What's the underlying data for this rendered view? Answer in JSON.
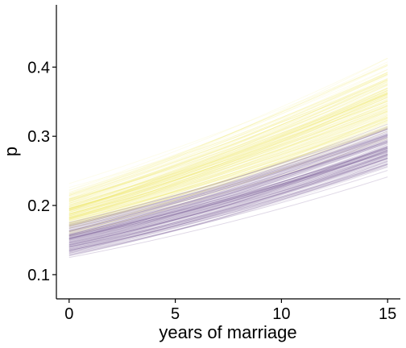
{
  "chart_data": {
    "type": "line",
    "xlabel": "years of marriage",
    "ylabel": "p",
    "xlim": [
      -0.6,
      15.6
    ],
    "ylim": [
      0.065,
      0.49
    ],
    "x_ticks": [
      0,
      5,
      10,
      15
    ],
    "y_ticks": [
      0.1,
      0.2,
      0.3,
      0.4
    ],
    "x_tick_labels": [
      "0",
      "5",
      "10",
      "15"
    ],
    "y_tick_labels": [
      "0.1",
      "0.2",
      "0.3",
      "0.4"
    ],
    "x": [
      0,
      15
    ],
    "grid": false,
    "legend": "none",
    "line_opacity": 0.12,
    "series": [
      {
        "color": "#efe351",
        "draws": 170,
        "p_at_0": {
          "mean": 0.19,
          "sd": 0.022
        },
        "p_at_15": {
          "mean": 0.355,
          "sd": 0.042
        }
      },
      {
        "color": "#6b4a8a",
        "draws": 170,
        "p_at_0": {
          "mean": 0.15,
          "sd": 0.018
        },
        "p_at_15": {
          "mean": 0.285,
          "sd": 0.026
        }
      }
    ]
  }
}
